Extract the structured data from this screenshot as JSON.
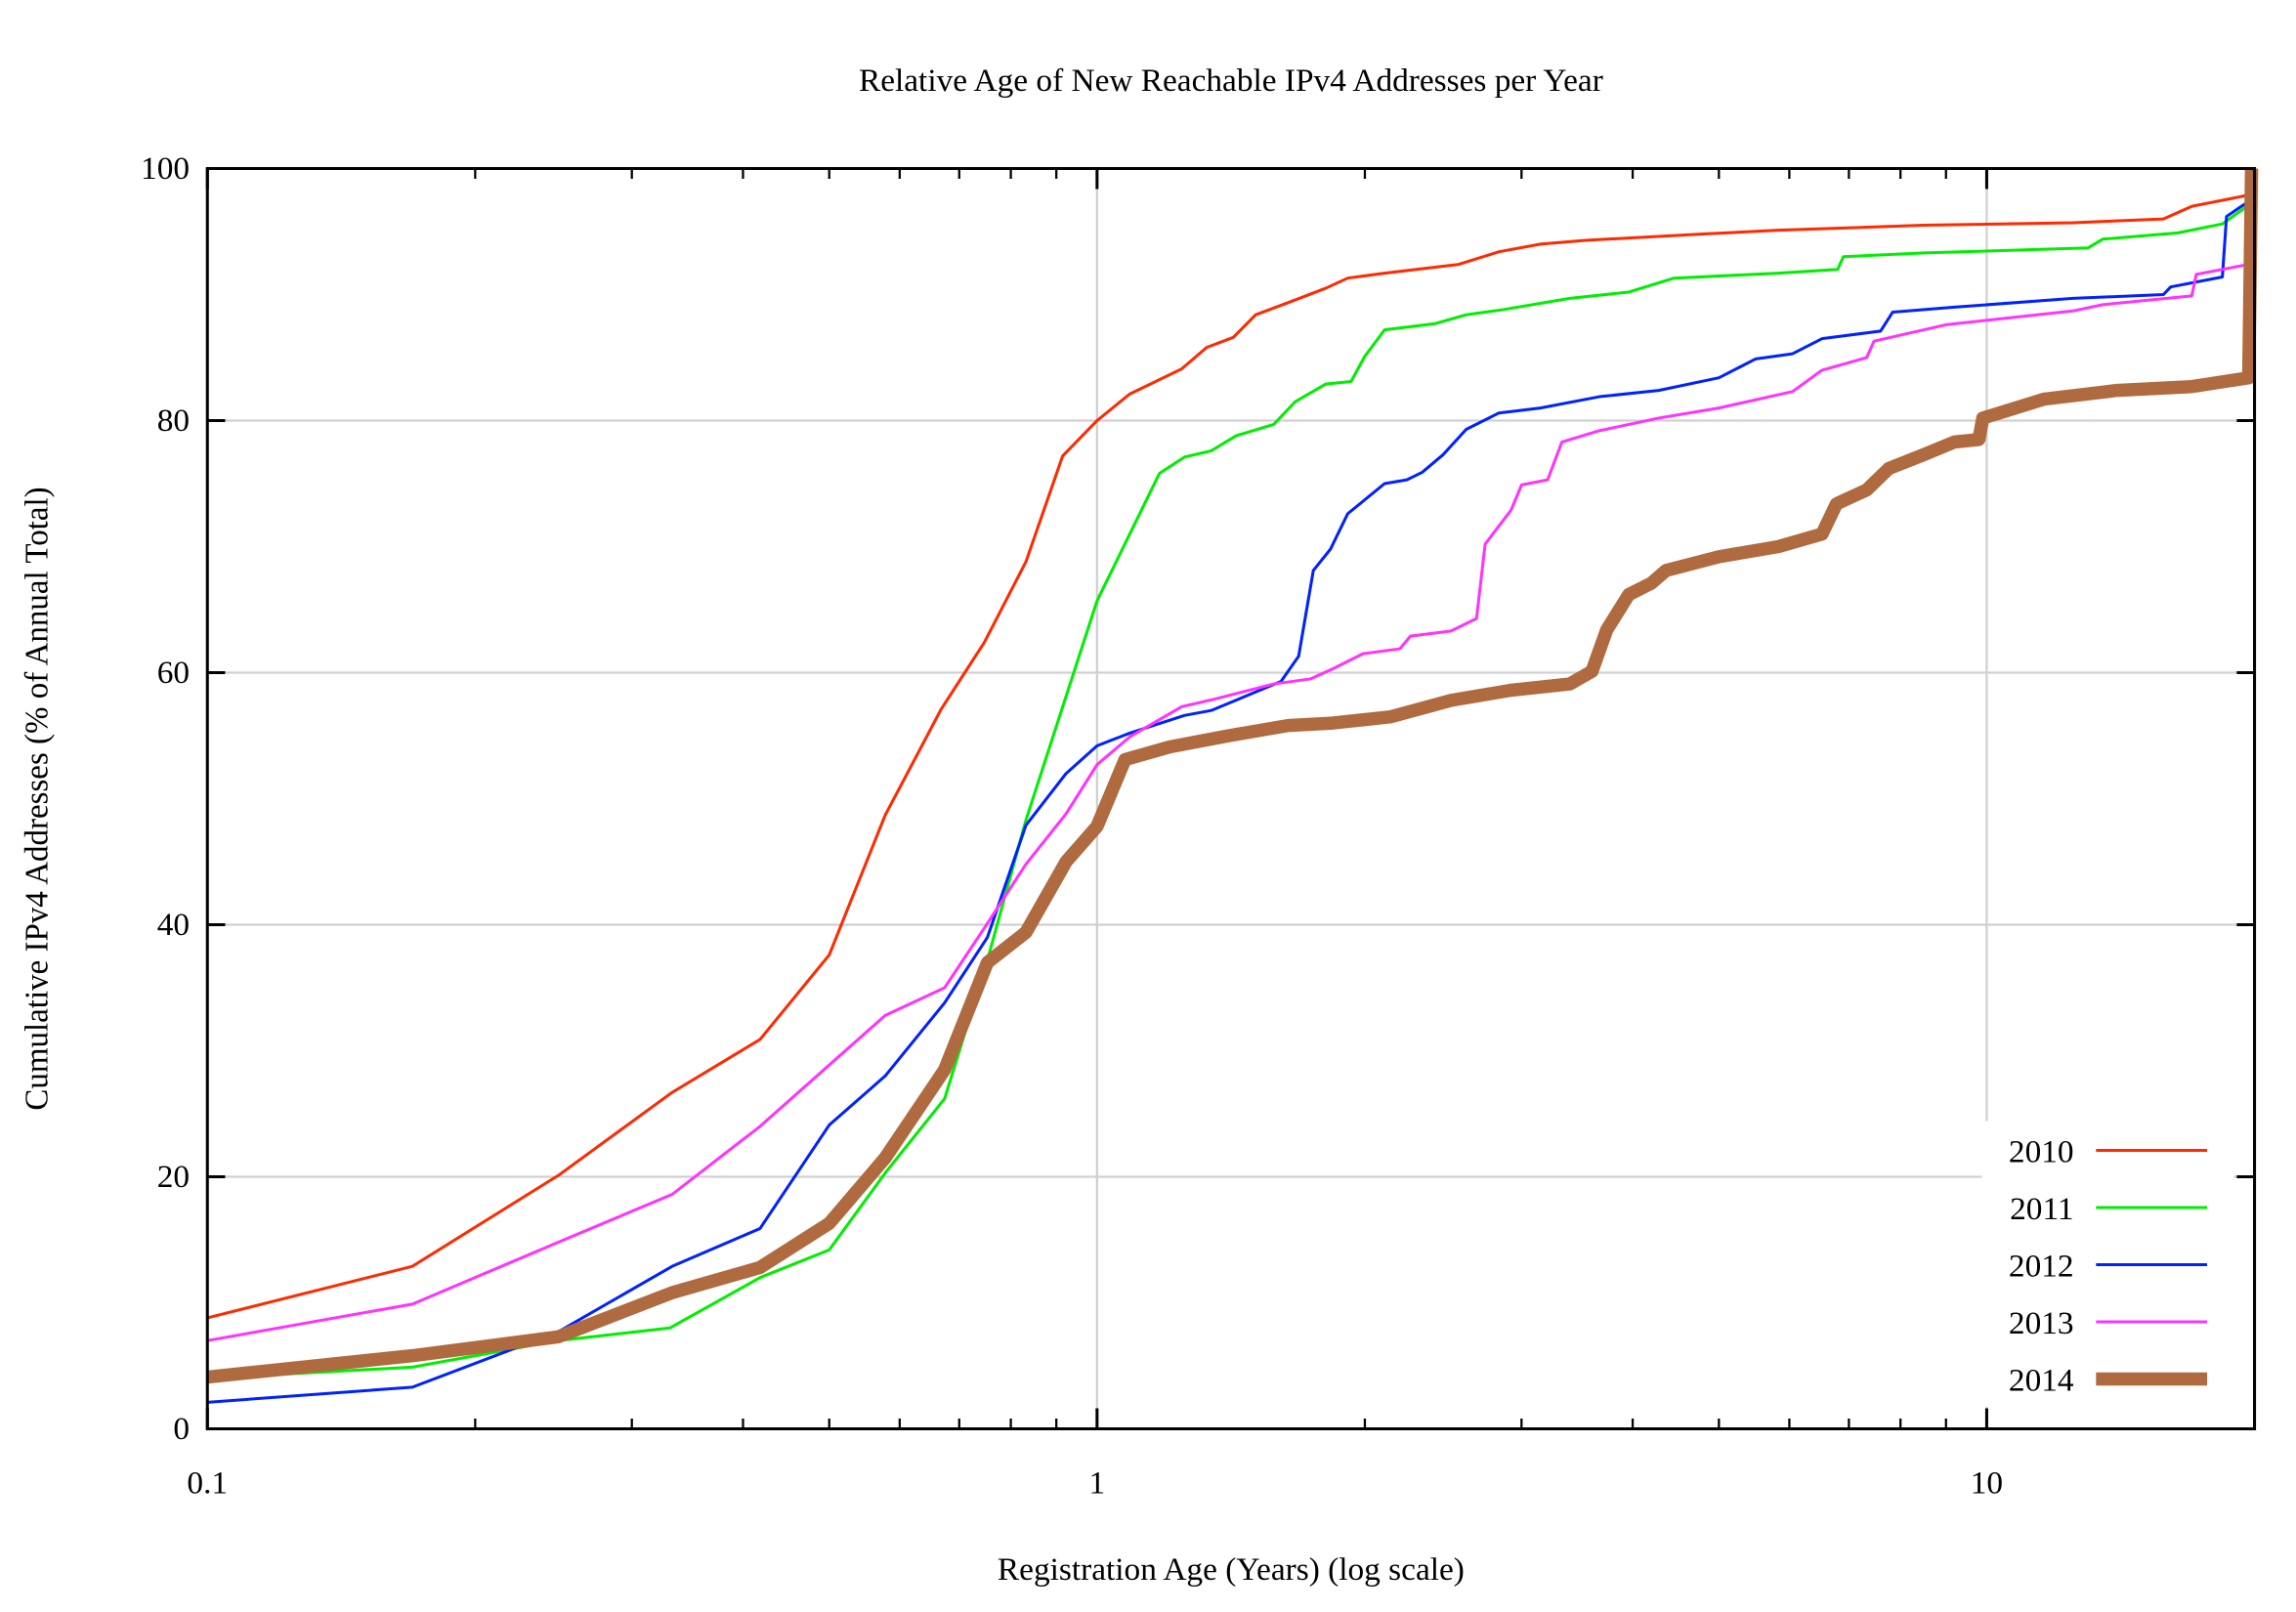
{
  "chart_data": {
    "type": "line",
    "title": "Relative Age of New Reachable IPv4 Addresses per Year",
    "xlabel": "Registration Age (Years) (log scale)",
    "ylabel": "Cumulative IPv4 Addresses (% of Annual Total)",
    "xscale": "log",
    "xlim": [
      0.1,
      20
    ],
    "ylim": [
      0,
      100
    ],
    "xticks": [
      {
        "value": 0.1,
        "label": "0.1"
      },
      {
        "value": 1,
        "label": "1"
      },
      {
        "value": 10,
        "label": "10"
      }
    ],
    "yticks": [
      {
        "value": 0,
        "label": "0"
      },
      {
        "value": 20,
        "label": "20"
      },
      {
        "value": 40,
        "label": "40"
      },
      {
        "value": 60,
        "label": "60"
      },
      {
        "value": 80,
        "label": "80"
      },
      {
        "value": 100,
        "label": "100"
      }
    ],
    "grid": true,
    "legend_position": "bottom-right",
    "series": [
      {
        "name": "2010",
        "color": "#ff2a00",
        "thick": false,
        "x": [
          0.1,
          0.17,
          0.248,
          0.333,
          0.418,
          0.5,
          0.578,
          0.668,
          0.747,
          0.832,
          0.915,
          1,
          1.088,
          1.245,
          1.328,
          1.423,
          1.508,
          1.66,
          1.807,
          1.913,
          2.105,
          2.55,
          2.83,
          3.15,
          3.54,
          4.8,
          5.83,
          8.5,
          12.5,
          15.8,
          17.0,
          19.7,
          20
        ],
        "y": [
          8.8,
          12.9,
          20.1,
          26.7,
          30.9,
          37.6,
          48.7,
          57.1,
          62.4,
          68.8,
          77.2,
          80,
          82.1,
          84.1,
          85.8,
          86.6,
          88.4,
          89.5,
          90.5,
          91.3,
          91.7,
          92.4,
          93.4,
          94.0,
          94.3,
          94.8,
          95.1,
          95.5,
          95.7,
          96.0,
          97.0,
          97.9,
          100
        ]
      },
      {
        "name": "2011",
        "color": "#00ee00",
        "thick": false,
        "x": [
          0.1,
          0.17,
          0.248,
          0.331,
          0.418,
          0.5,
          0.578,
          0.674,
          0.753,
          0.832,
          1,
          1.175,
          1.254,
          1.344,
          1.434,
          1.58,
          1.67,
          1.807,
          1.93,
          2.0,
          2.105,
          2.4,
          2.6,
          2.86,
          3.4,
          3.96,
          4.45,
          5.83,
          6.8,
          6.9,
          8.5,
          13,
          13.5,
          16.4,
          18.4,
          19.7,
          20
        ],
        "y": [
          4.0,
          4.9,
          7.0,
          8.0,
          12.0,
          14.2,
          20.3,
          26.2,
          37.2,
          48.3,
          65.7,
          75.8,
          77.1,
          77.6,
          78.8,
          79.7,
          81.5,
          82.9,
          83.1,
          85.1,
          87.2,
          87.7,
          88.4,
          88.8,
          89.7,
          90.2,
          91.3,
          91.7,
          92.0,
          93.0,
          93.3,
          93.7,
          94.4,
          94.9,
          95.6,
          97.1,
          100
        ]
      },
      {
        "name": "2012",
        "color": "#0022ff",
        "thick": false,
        "x": [
          0.1,
          0.17,
          0.248,
          0.333,
          0.418,
          0.5,
          0.578,
          0.674,
          0.753,
          0.832,
          0.923,
          1,
          1.088,
          1.254,
          1.344,
          1.61,
          1.685,
          1.75,
          1.83,
          1.913,
          2.105,
          2.23,
          2.32,
          2.45,
          2.6,
          2.83,
          3.15,
          3.67,
          4.28,
          5.0,
          5.5,
          6.05,
          6.53,
          7.6,
          7.84,
          9.2,
          12.5,
          15.8,
          16.1,
          18.4,
          18.6,
          19.7,
          20
        ],
        "y": [
          2.1,
          3.3,
          7.7,
          12.9,
          15.9,
          24.1,
          28.0,
          33.8,
          39.0,
          47.9,
          52.0,
          54.2,
          55.2,
          56.6,
          57.0,
          59.3,
          61.3,
          68.1,
          69.8,
          72.6,
          75.0,
          75.3,
          75.9,
          77.3,
          79.3,
          80.6,
          81.0,
          81.9,
          82.4,
          83.4,
          84.9,
          85.3,
          86.5,
          87.1,
          88.6,
          89.0,
          89.7,
          90.0,
          90.6,
          91.4,
          96.2,
          97.4,
          100
        ]
      },
      {
        "name": "2013",
        "color": "#ff33ff",
        "thick": false,
        "x": [
          0.1,
          0.17,
          0.248,
          0.333,
          0.418,
          0.578,
          0.674,
          0.753,
          0.832,
          0.923,
          1,
          1.088,
          1.245,
          1.354,
          1.58,
          1.737,
          1.84,
          1.99,
          2.19,
          2.25,
          2.5,
          2.67,
          2.73,
          2.92,
          3.0,
          3.21,
          3.33,
          3.67,
          4.28,
          5.0,
          6.05,
          6.53,
          7.33,
          7.47,
          9.0,
          12.5,
          13.5,
          17.0,
          17.2,
          19.7,
          20
        ],
        "y": [
          7.0,
          9.9,
          14.8,
          18.6,
          24.0,
          32.8,
          35.0,
          40.1,
          44.8,
          48.8,
          52.7,
          54.9,
          57.3,
          57.9,
          59.1,
          59.5,
          60.3,
          61.5,
          61.9,
          62.9,
          63.3,
          64.3,
          70.2,
          72.9,
          74.9,
          75.3,
          78.3,
          79.2,
          80.2,
          81.0,
          82.3,
          84.0,
          85.0,
          86.3,
          87.6,
          88.7,
          89.2,
          89.9,
          91.6,
          92.4,
          100
        ]
      },
      {
        "name": "2014",
        "color": "#b06a40",
        "thick": true,
        "x": [
          0.1,
          0.17,
          0.248,
          0.333,
          0.418,
          0.5,
          0.578,
          0.674,
          0.753,
          0.832,
          0.923,
          1,
          1.075,
          1.207,
          1.407,
          1.64,
          1.84,
          2.14,
          2.5,
          2.92,
          3.4,
          3.6,
          3.74,
          3.96,
          4.2,
          4.36,
          5.0,
          5.83,
          6.53,
          6.78,
          7.33,
          7.76,
          8.5,
          9.2,
          9.8,
          9.9,
          11.6,
          14.0,
          17.0,
          19.7,
          19.85
        ],
        "y": [
          4.1,
          5.8,
          7.3,
          10.8,
          12.8,
          16.3,
          21.5,
          28.5,
          37.0,
          39.4,
          45.0,
          47.8,
          53.1,
          54.1,
          55.0,
          55.8,
          56.0,
          56.5,
          57.8,
          58.6,
          59.1,
          60.1,
          63.4,
          66.2,
          67.1,
          68.1,
          69.2,
          70.0,
          71.0,
          73.4,
          74.5,
          76.2,
          77.3,
          78.3,
          78.5,
          80.2,
          81.7,
          82.4,
          82.7,
          83.4,
          100
        ]
      }
    ]
  }
}
